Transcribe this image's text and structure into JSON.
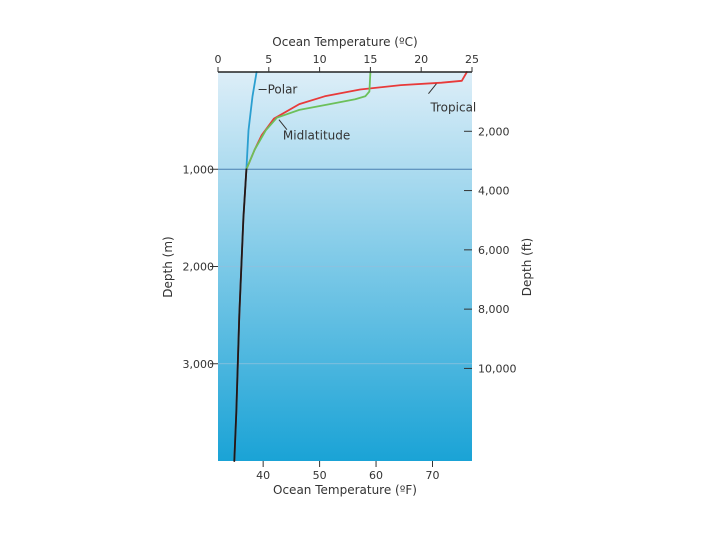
{
  "chart_data": {
    "type": "line",
    "title": "",
    "top_axis": {
      "label": "Ocean Temperature (ºC)",
      "range": [
        0,
        25
      ],
      "ticks": [
        "0",
        "5",
        "10",
        "15",
        "20",
        "25"
      ]
    },
    "bottom_axis": {
      "label": "Ocean Temperature (ºF)",
      "ticks": [
        "40",
        "50",
        "60",
        "70"
      ]
    },
    "left_axis": {
      "label": "Depth (m)",
      "range": [
        0,
        4000
      ],
      "ticks": [
        "1,000",
        "2,000",
        "3,000"
      ]
    },
    "right_axis": {
      "label": "Depth (ft)",
      "ticks": [
        "2,000",
        "4,000",
        "6,000",
        "8,000",
        "10,000"
      ]
    },
    "depth_unit": "m",
    "temperature_unit": "ºC",
    "series": [
      {
        "name": "Polar",
        "color": "#2a9fd0",
        "points": [
          [
            3.8,
            0
          ],
          [
            3.4,
            250
          ],
          [
            3.0,
            600
          ],
          [
            2.8,
            1000
          ]
        ]
      },
      {
        "name": "Tropical",
        "color": "#e83a3a",
        "points": [
          [
            24.5,
            0
          ],
          [
            24,
            90
          ],
          [
            22,
            110
          ],
          [
            18,
            135
          ],
          [
            14,
            180
          ],
          [
            10.5,
            250
          ],
          [
            8,
            330
          ],
          [
            5.5,
            480
          ],
          [
            4.3,
            650
          ],
          [
            3.6,
            800
          ],
          [
            2.8,
            1000
          ],
          [
            2.5,
            1500
          ],
          [
            2.1,
            2500
          ],
          [
            1.8,
            3500
          ],
          [
            1.6,
            4000
          ]
        ]
      },
      {
        "name": "Midlatitude",
        "color": "#6cc05a",
        "points": [
          [
            15,
            0
          ],
          [
            14.9,
            200
          ],
          [
            14.5,
            250
          ],
          [
            13.5,
            280
          ],
          [
            11,
            330
          ],
          [
            8,
            390
          ],
          [
            5.8,
            470
          ],
          [
            4.7,
            600
          ],
          [
            3.6,
            800
          ],
          [
            2.8,
            1000
          ]
        ]
      },
      {
        "name": "",
        "color": "#1a1a1a",
        "points": [
          [
            2.8,
            1000
          ],
          [
            2.5,
            1500
          ],
          [
            2.1,
            2500
          ],
          [
            1.8,
            3500
          ],
          [
            1.6,
            4000
          ]
        ]
      }
    ],
    "annotations": {
      "thermocline_base_depth": 1000
    },
    "grid": false,
    "background_gradient": [
      "#ddeef8",
      "#1aa3d6"
    ]
  }
}
